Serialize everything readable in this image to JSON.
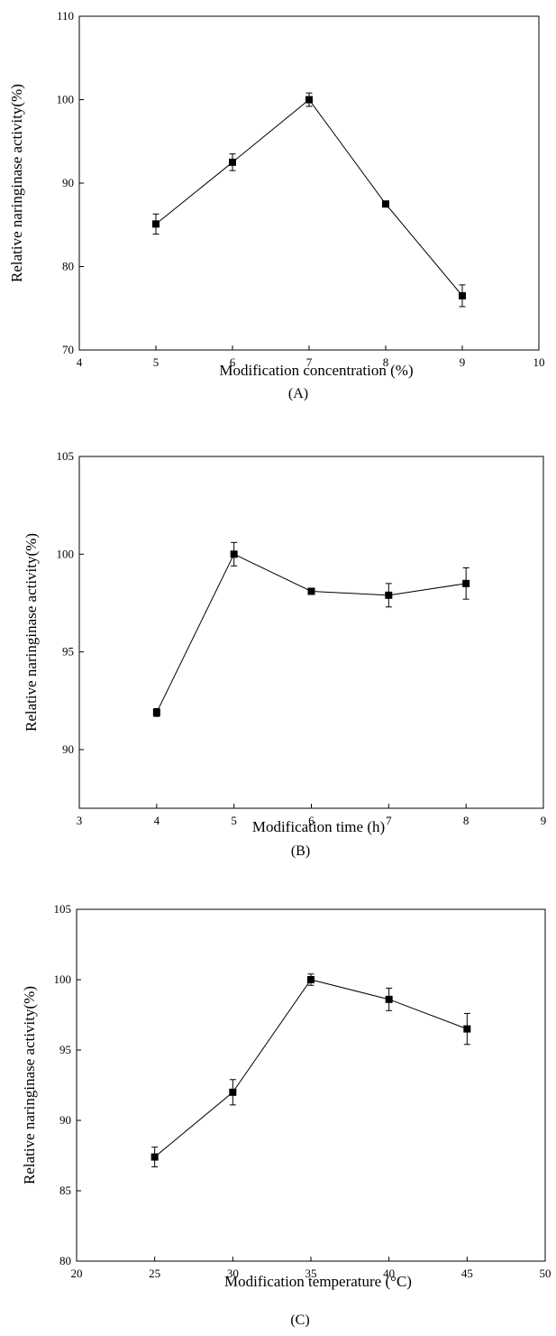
{
  "chart_data": [
    {
      "type": "line",
      "panel_label": "(A)",
      "xlabel": "Modification concentration (%)",
      "ylabel": "Relative naringinase activity(%)",
      "xlim": [
        4,
        10
      ],
      "ylim": [
        70,
        110
      ],
      "xticks": [
        "4",
        "5",
        "6",
        "7",
        "8",
        "9",
        "10"
      ],
      "yticks": [
        "70",
        "80",
        "90",
        "100",
        "110"
      ],
      "grid": false,
      "series": [
        {
          "x": [
            5,
            6,
            7,
            8,
            9
          ],
          "y": [
            85.1,
            92.5,
            100.0,
            87.5,
            76.5
          ],
          "err": [
            1.2,
            1.0,
            0.8,
            0.3,
            1.3
          ],
          "marker": "square"
        }
      ]
    },
    {
      "type": "line",
      "panel_label": "(B)",
      "xlabel": "Modification time (h)",
      "ylabel": "Relative naringinase activity(%)",
      "xlim": [
        3,
        9
      ],
      "ylim": [
        87,
        105
      ],
      "xticks": [
        "3",
        "4",
        "5",
        "6",
        "7",
        "8",
        "9"
      ],
      "yticks": [
        "90",
        "95",
        "100",
        "105"
      ],
      "grid": false,
      "series": [
        {
          "x": [
            4,
            5,
            6,
            7,
            8
          ],
          "y": [
            91.9,
            100.0,
            98.1,
            97.9,
            98.5
          ],
          "err": [
            0.2,
            0.6,
            0.1,
            0.6,
            0.8
          ],
          "marker": "square"
        }
      ]
    },
    {
      "type": "line",
      "panel_label": "(C)",
      "xlabel": "Modification temperature (°C)",
      "ylabel": "Relative naringinase activity(%)",
      "xlim": [
        20,
        50
      ],
      "ylim": [
        80,
        105
      ],
      "xticks": [
        "20",
        "25",
        "30",
        "35",
        "40",
        "45",
        "50"
      ],
      "yticks": [
        "80",
        "85",
        "90",
        "95",
        "100",
        "105"
      ],
      "grid": false,
      "series": [
        {
          "x": [
            25,
            30,
            35,
            40,
            45
          ],
          "y": [
            87.4,
            92.0,
            100.0,
            98.6,
            96.5
          ],
          "err": [
            0.7,
            0.9,
            0.4,
            0.8,
            1.1
          ],
          "marker": "square"
        }
      ]
    }
  ]
}
